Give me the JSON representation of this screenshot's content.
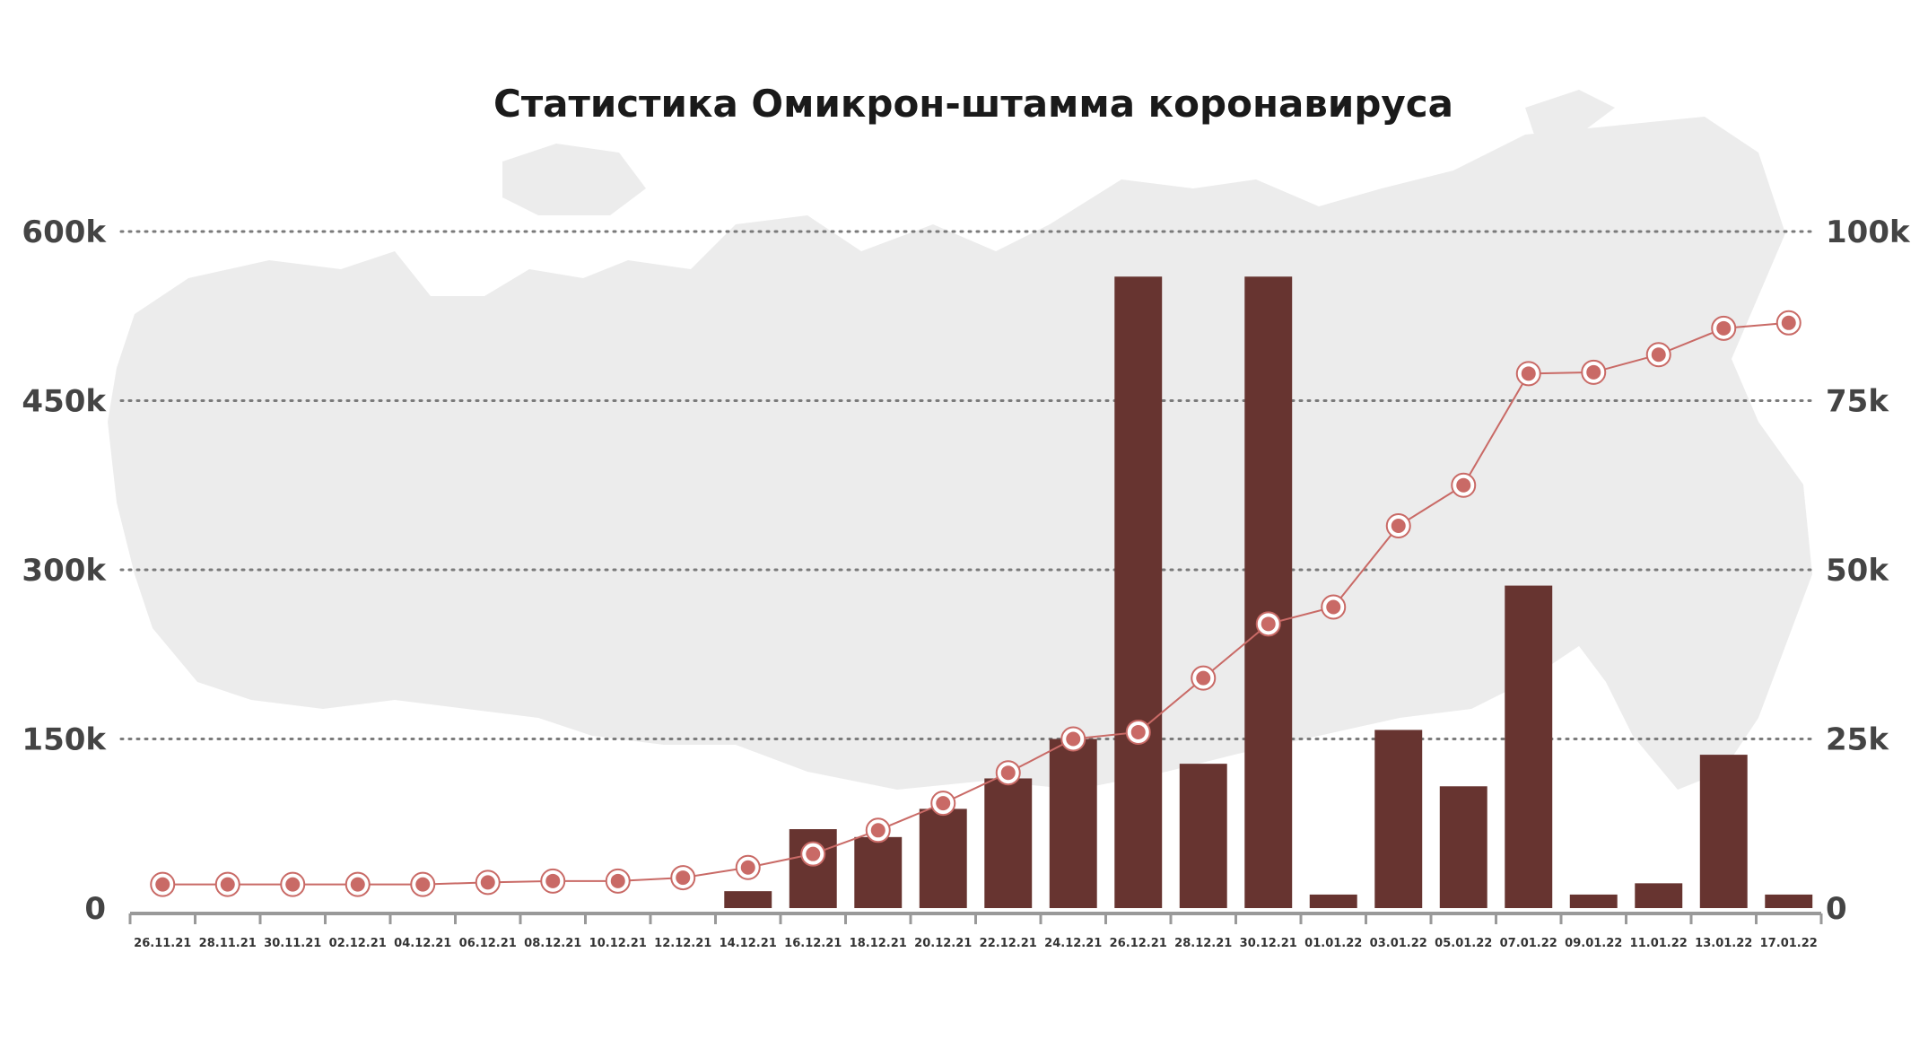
{
  "chart_data": {
    "type": "bar",
    "title": "Статистика Омикрон-штамма коронавируса",
    "categories": [
      "26.11.21",
      "28.11.21",
      "30.11.21",
      "02.12.21",
      "04.12.21",
      "06.12.21",
      "08.12.21",
      "10.12.21",
      "12.12.21",
      "14.12.21",
      "16.12.21",
      "18.12.21",
      "20.12.21",
      "22.12.21",
      "24.12.21",
      "26.12.21",
      "28.12.21",
      "30.12.21",
      "01.01.22",
      "03.01.22",
      "05.01.22",
      "07.01.22",
      "09.01.22",
      "11.01.22",
      "13.01.22",
      "17.01.22"
    ],
    "series": [
      {
        "type": "bar",
        "axis": "left",
        "color": "#673430",
        "values": [
          0,
          0,
          0,
          0,
          0,
          0,
          0,
          0,
          0,
          15000,
          70000,
          63000,
          88000,
          115000,
          150000,
          560000,
          128000,
          560000,
          12000,
          158000,
          108000,
          286000,
          12000,
          22000,
          136000,
          12000
        ]
      },
      {
        "type": "line",
        "axis": "right",
        "color": "#c96a66",
        "values": [
          3500,
          3500,
          3500,
          3500,
          3500,
          3800,
          4000,
          4000,
          4500,
          6000,
          8000,
          11500,
          15500,
          20000,
          25000,
          26000,
          34000,
          42000,
          44500,
          56500,
          62500,
          79000,
          79200,
          81800,
          85700,
          86500
        ]
      }
    ],
    "yleft": {
      "ticks": [
        "0",
        "150k",
        "300k",
        "450k",
        "600k"
      ],
      "ylim": [
        0,
        600000
      ]
    },
    "yright": {
      "ticks": [
        "0",
        "25k",
        "50k",
        "75k",
        "100k"
      ],
      "ylim": [
        0,
        100000
      ]
    },
    "grid": true,
    "colors": {
      "bar": "#673430",
      "line": "#c96a66",
      "grid": "#7a7a7a",
      "axis": "#999999",
      "map": "#ececec"
    }
  }
}
